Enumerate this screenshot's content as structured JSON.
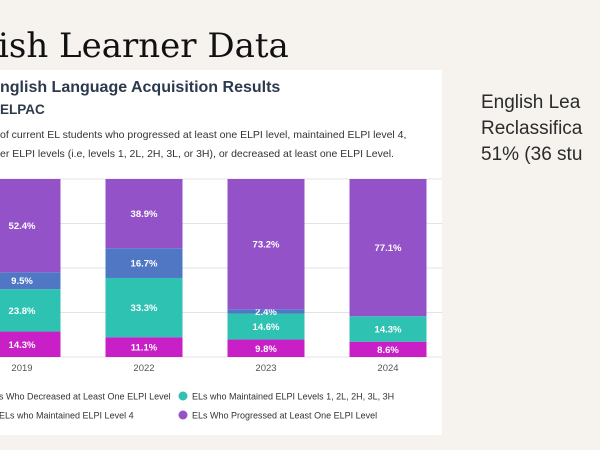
{
  "slide": {
    "title": "ish Learner Data",
    "right_text": [
      "English Lea",
      "Reclassifica",
      "51% (36 stu"
    ]
  },
  "card": {
    "title": "nglish Language Acquisition Results",
    "subtitle": "ELPAC",
    "description": [
      "of current EL students who progressed at least one ELPI level, maintained ELPI level 4,",
      "er ELPI levels (i.e, levels 1, 2L, 2H, 3L, or 3H), or decreased at least one ELPI Level."
    ]
  },
  "colors": {
    "decreased": "#c81fc7",
    "maintained_1_3h": "#2ec2b3",
    "maintained_4": "#4f77c4",
    "progressed": "#9452c8"
  },
  "chart_data": {
    "type": "bar",
    "stacked": true,
    "categories": [
      "2019",
      "2022",
      "2023",
      "2024"
    ],
    "ylim": [
      0,
      100
    ],
    "grid": true,
    "legend_position": "bottom",
    "series": [
      {
        "name": "s Who Decreased at Least One ELPI Level",
        "key": "decreased",
        "values": [
          14.3,
          11.1,
          9.8,
          8.6
        ],
        "labels": [
          "14.3%",
          "11.1%",
          "9.8%",
          "8.6%"
        ]
      },
      {
        "name": "ELs who Maintained ELPI Levels 1, 2L, 2H, 3L, 3H",
        "key": "maintained_1_3h",
        "values": [
          23.8,
          33.3,
          14.6,
          14.3
        ],
        "labels": [
          "23.8%",
          "33.3%",
          "14.6%",
          "14.3%"
        ]
      },
      {
        "name": "ELs who Maintained ELPI Level 4",
        "key": "maintained_4",
        "values": [
          9.5,
          16.7,
          2.4,
          0
        ],
        "labels": [
          "9.5%",
          "16.7%",
          "2.4%",
          ""
        ]
      },
      {
        "name": "ELs Who Progressed at Least One ELPI Level",
        "key": "progressed",
        "values": [
          52.4,
          38.9,
          73.2,
          77.1
        ],
        "labels": [
          "52.4%",
          "38.9%",
          "73.2%",
          "77.1%"
        ]
      }
    ]
  }
}
